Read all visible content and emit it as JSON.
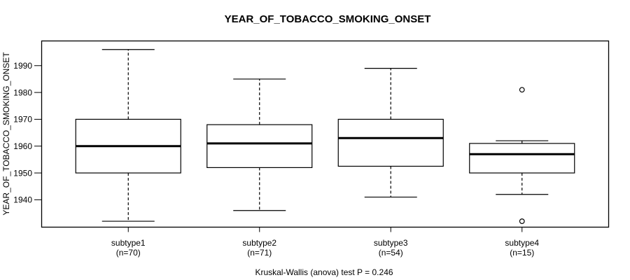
{
  "chart_data": {
    "type": "boxplot",
    "title": "YEAR_OF_TOBACCO_SMOKING_ONSET",
    "ylabel": "YEAR_OF_TOBACCO_SMOKING_ONSET",
    "xlabel": "",
    "annotation": "Kruskal-Wallis (anova) test P = 0.246",
    "ylim": [
      1929.8,
      1999.2
    ],
    "yticks": [
      1940,
      1950,
      1960,
      1970,
      1980,
      1990
    ],
    "grid": false,
    "legend": "none",
    "colors": {
      "foreground": "#000000",
      "background": "#ffffff",
      "box_fill": "#ffffff"
    },
    "groups": [
      {
        "label": "subtype1",
        "sublabel": "(n=70)",
        "n": 70,
        "whisker_low": 1932,
        "q1": 1950,
        "median": 1960,
        "q3": 1970,
        "whisker_high": 1996,
        "outliers": []
      },
      {
        "label": "subtype2",
        "sublabel": "(n=71)",
        "n": 71,
        "whisker_low": 1936,
        "q1": 1952,
        "median": 1961,
        "q3": 1968,
        "whisker_high": 1985,
        "outliers": []
      },
      {
        "label": "subtype3",
        "sublabel": "(n=54)",
        "n": 54,
        "whisker_low": 1941,
        "q1": 1952.5,
        "median": 1963,
        "q3": 1970,
        "whisker_high": 1989,
        "outliers": []
      },
      {
        "label": "subtype4",
        "sublabel": "(n=15)",
        "n": 15,
        "whisker_low": 1942,
        "q1": 1950,
        "median": 1957,
        "q3": 1961,
        "whisker_high": 1962,
        "outliers": [
          1981,
          1932
        ]
      }
    ]
  }
}
